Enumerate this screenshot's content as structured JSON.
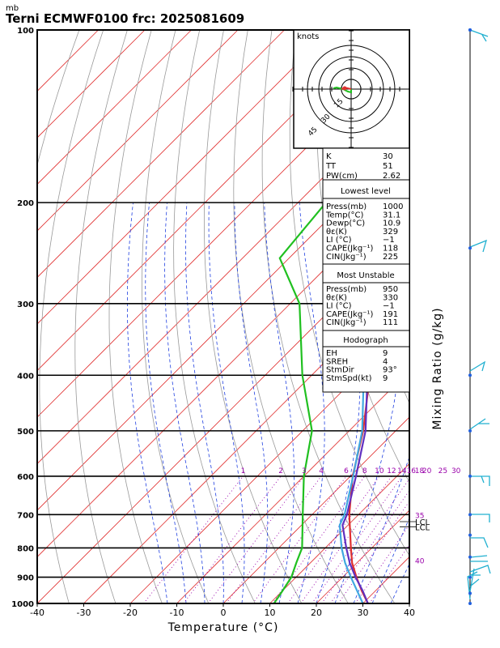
{
  "header": {
    "title": "Terni ECMWF0100  frc: 2025081609",
    "unit_label": "mb"
  },
  "chart_data": {
    "type": "line",
    "subtype": "skew-T log-p",
    "xlabel": "Temperature (°C)",
    "ylabel_right": "Mixing Ratio (g/kg)",
    "x_ticks": [
      -40,
      -30,
      -20,
      -10,
      0,
      10,
      20,
      30,
      40
    ],
    "xlim": [
      -40,
      40
    ],
    "pressure_levels": [
      100,
      200,
      300,
      400,
      500,
      600,
      700,
      800,
      900,
      1000
    ],
    "ylim": [
      1000,
      100
    ],
    "y_scale": "log",
    "mixing_ratio_labels": [
      "1",
      "2",
      "3",
      "4",
      "6",
      "8",
      "10",
      "12",
      "14",
      "16",
      "18",
      "20",
      "25",
      "30"
    ],
    "mixing_ratio_values": [
      1,
      2,
      3,
      4,
      6,
      8,
      10,
      12,
      14,
      16,
      18,
      20,
      25,
      30
    ],
    "side_markers": [
      {
        "text": "35",
        "pressure": 700
      },
      {
        "text": "LCL",
        "pressure": 720
      },
      {
        "text": "LCL",
        "pressure": 735
      },
      {
        "text": "40",
        "pressure": 840
      }
    ],
    "series": [
      {
        "name": "temperature",
        "color": "#e03030",
        "points": [
          [
            1000,
            31.1
          ],
          [
            950,
            27
          ],
          [
            900,
            23
          ],
          [
            850,
            19
          ],
          [
            800,
            15.5
          ],
          [
            700,
            8
          ],
          [
            600,
            0.5
          ],
          [
            500,
            -7
          ],
          [
            400,
            -17.5
          ],
          [
            300,
            -30.5
          ],
          [
            250,
            -40
          ],
          [
            200,
            -50
          ],
          [
            150,
            -58
          ],
          [
            100,
            -64
          ]
        ]
      },
      {
        "name": "dewpoint",
        "color": "#20c020",
        "points": [
          [
            1000,
            10.9
          ],
          [
            950,
            10
          ],
          [
            900,
            9
          ],
          [
            850,
            7
          ],
          [
            800,
            5
          ],
          [
            700,
            -2
          ],
          [
            600,
            -10
          ],
          [
            500,
            -18
          ],
          [
            400,
            -32
          ],
          [
            300,
            -48
          ],
          [
            250,
            -62
          ],
          [
            200,
            -64
          ],
          [
            150,
            -68
          ],
          [
            100,
            -76
          ]
        ]
      },
      {
        "name": "parcel",
        "color": "#6030c0",
        "points": [
          [
            1000,
            31.1
          ],
          [
            950,
            27.2
          ],
          [
            900,
            22.8
          ],
          [
            850,
            18.5
          ],
          [
            800,
            14.5
          ],
          [
            730,
            8.8
          ],
          [
            700,
            7.5
          ],
          [
            600,
            1.2
          ],
          [
            500,
            -6.5
          ],
          [
            400,
            -18
          ],
          [
            300,
            -33.5
          ],
          [
            250,
            -43.5
          ],
          [
            200,
            -55.5
          ],
          [
            150,
            -70
          ],
          [
            110,
            -85
          ]
        ]
      },
      {
        "name": "parcel2",
        "color": "#40a8e0",
        "points": [
          [
            1000,
            30
          ],
          [
            950,
            26
          ],
          [
            900,
            21.8
          ],
          [
            850,
            17.5
          ],
          [
            800,
            13.5
          ],
          [
            730,
            8.2
          ],
          [
            700,
            7
          ],
          [
            600,
            0.6
          ],
          [
            500,
            -7.2
          ],
          [
            400,
            -18.8
          ],
          [
            300,
            -34.5
          ],
          [
            250,
            -44.5
          ],
          [
            200,
            -56.5
          ],
          [
            150,
            -71
          ],
          [
            110,
            -86
          ]
        ]
      }
    ]
  },
  "hodograph": {
    "units": "knots",
    "ring_labels": [
      "15",
      "30",
      "45"
    ]
  },
  "indices": [
    {
      "label": "K",
      "value": "30"
    },
    {
      "label": "TT",
      "value": "51"
    },
    {
      "label": "PW(cm)",
      "value": "2.62"
    }
  ],
  "lowest_level": {
    "title": "Lowest level",
    "rows": [
      {
        "label": "Press(mb)",
        "value": "1000"
      },
      {
        "label": "Temp(°C)",
        "value": "31.1"
      },
      {
        "label": "Dewp(°C)",
        "value": "10.9"
      },
      {
        "label": "θε(K)",
        "value": "329"
      },
      {
        "label": "LI  (°C)",
        "value": "−1"
      },
      {
        "label": "CAPE(Jkg⁻¹)",
        "value": "118"
      },
      {
        "label": "CIN(Jkg⁻¹)",
        "value": "225"
      }
    ]
  },
  "most_unstable": {
    "title": "Most Unstable",
    "rows": [
      {
        "label": "Press(mb)",
        "value": "950"
      },
      {
        "label": "θε(K)",
        "value": "330"
      },
      {
        "label": "LI  (°C)",
        "value": "−1"
      },
      {
        "label": "CAPE(Jkg⁻¹)",
        "value": "191"
      },
      {
        "label": "CIN(Jkg⁻¹)",
        "value": "111"
      }
    ]
  },
  "hodo_box": {
    "title": "Hodograph",
    "rows": [
      {
        "label": "EH",
        "value": "9"
      },
      {
        "label": "SREH",
        "value": "4"
      },
      {
        "label": "StmDir",
        "value": "93°"
      },
      {
        "label": "StmSpd(kt)",
        "value": "9"
      }
    ]
  },
  "colors": {
    "temperature": "#e03030",
    "dewpoint": "#20c020",
    "isotherm": "#e03030",
    "dry_adiabat": "#999999",
    "moist_adiabat": "#2040e0",
    "mixing_ratio": "#9900aa",
    "wind": "#20b0d0"
  }
}
